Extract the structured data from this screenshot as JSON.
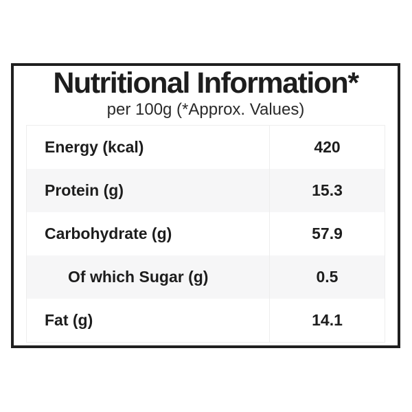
{
  "header": {
    "title": "Nutritional Information*",
    "subtitle": "per 100g (*Approx. Values)"
  },
  "table": {
    "rows": [
      {
        "label": "Energy (kcal)",
        "value": "420",
        "indent": false
      },
      {
        "label": "Protein (g)",
        "value": "15.3",
        "indent": false
      },
      {
        "label": "Carbohydrate (g)",
        "value": "57.9",
        "indent": false
      },
      {
        "label": "Of which Sugar (g)",
        "value": "0.5",
        "indent": true
      },
      {
        "label": "Fat (g)",
        "value": "14.1",
        "indent": false
      }
    ]
  },
  "colors": {
    "panel_border": "#1f1f1f",
    "text": "#1d1d1d",
    "row_bg": "#ffffff",
    "row_alt_bg": "#f6f6f7",
    "table_border": "#ededed"
  }
}
